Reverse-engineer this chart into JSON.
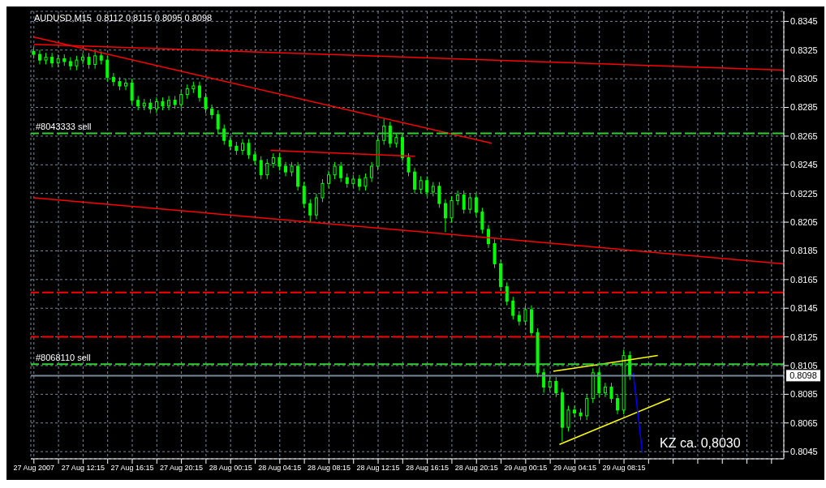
{
  "chart_data": {
    "type": "candlestick",
    "title": "AUDUSD,M15  0.8112 0.8115 0.8095 0.8098",
    "color": "#00ff00",
    "x": [
      "2007-08-27T08:15",
      "2007-08-27T08:45",
      "2007-08-27T09:15",
      "2007-08-27T09:45",
      "2007-08-27T10:15",
      "2007-08-27T10:45",
      "2007-08-27T11:15",
      "2007-08-27T11:45",
      "2007-08-27T12:15",
      "2007-08-27T12:45",
      "2007-08-27T13:15",
      "2007-08-27T13:45",
      "2007-08-27T14:15",
      "2007-08-27T14:45",
      "2007-08-27T15:15",
      "2007-08-27T15:45",
      "2007-08-27T16:15",
      "2007-08-27T16:45",
      "2007-08-27T17:15",
      "2007-08-27T17:45",
      "2007-08-27T18:15",
      "2007-08-27T18:45",
      "2007-08-27T19:15",
      "2007-08-27T19:45",
      "2007-08-27T20:15",
      "2007-08-27T20:45",
      "2007-08-27T21:15",
      "2007-08-27T21:45",
      "2007-08-27T22:15",
      "2007-08-27T22:45",
      "2007-08-27T23:15",
      "2007-08-27T23:45",
      "2007-08-28T00:15",
      "2007-08-28T00:45",
      "2007-08-28T01:15",
      "2007-08-28T01:45",
      "2007-08-28T02:15",
      "2007-08-28T02:45",
      "2007-08-28T03:15",
      "2007-08-28T03:45",
      "2007-08-28T04:15",
      "2007-08-28T04:45",
      "2007-08-28T05:15",
      "2007-08-28T05:45",
      "2007-08-28T06:15",
      "2007-08-28T06:45",
      "2007-08-28T07:15",
      "2007-08-28T07:45",
      "2007-08-28T08:15",
      "2007-08-28T08:45",
      "2007-08-28T09:15",
      "2007-08-28T09:45",
      "2007-08-28T10:15",
      "2007-08-28T10:45",
      "2007-08-28T11:15",
      "2007-08-28T11:45",
      "2007-08-28T12:15",
      "2007-08-28T12:45",
      "2007-08-28T13:15",
      "2007-08-28T13:45",
      "2007-08-28T14:15",
      "2007-08-28T14:45",
      "2007-08-28T15:15",
      "2007-08-28T15:45",
      "2007-08-28T16:15",
      "2007-08-28T16:45",
      "2007-08-28T17:15",
      "2007-08-28T17:45",
      "2007-08-28T18:15",
      "2007-08-28T18:45",
      "2007-08-28T19:15",
      "2007-08-28T19:45",
      "2007-08-28T20:15",
      "2007-08-28T20:45",
      "2007-08-28T21:15",
      "2007-08-28T21:45",
      "2007-08-28T22:15",
      "2007-08-28T22:45",
      "2007-08-28T23:15",
      "2007-08-28T23:45",
      "2007-08-29T00:15",
      "2007-08-29T00:45",
      "2007-08-29T01:15",
      "2007-08-29T01:45",
      "2007-08-29T02:15",
      "2007-08-29T02:45",
      "2007-08-29T03:15",
      "2007-08-29T03:45",
      "2007-08-29T04:15",
      "2007-08-29T04:45",
      "2007-08-29T05:15",
      "2007-08-29T05:45",
      "2007-08-29T06:15",
      "2007-08-29T06:45",
      "2007-08-29T07:15",
      "2007-08-29T07:45",
      "2007-08-29T08:15",
      "2007-08-29T08:45"
    ],
    "ohlc": [
      [
        0.8324,
        0.8327,
        0.8319,
        0.8322
      ],
      [
        0.8322,
        0.8325,
        0.8315,
        0.8318
      ],
      [
        0.8318,
        0.8323,
        0.8315,
        0.832
      ],
      [
        0.832,
        0.8323,
        0.8313,
        0.8316
      ],
      [
        0.8316,
        0.8322,
        0.8313,
        0.8319
      ],
      [
        0.8319,
        0.8322,
        0.8314,
        0.8317
      ],
      [
        0.8317,
        0.832,
        0.8311,
        0.8314
      ],
      [
        0.8314,
        0.8321,
        0.8311,
        0.8318
      ],
      [
        0.8318,
        0.8323,
        0.8315,
        0.832
      ],
      [
        0.832,
        0.8323,
        0.8312,
        0.8315
      ],
      [
        0.8315,
        0.8324,
        0.8312,
        0.8321
      ],
      [
        0.8321,
        0.8324,
        0.8315,
        0.8318
      ],
      [
        0.8318,
        0.8321,
        0.8303,
        0.8306
      ],
      [
        0.8306,
        0.8309,
        0.83,
        0.8303
      ],
      [
        0.8303,
        0.8306,
        0.8297,
        0.83
      ],
      [
        0.83,
        0.8305,
        0.8297,
        0.8302
      ],
      [
        0.8302,
        0.8305,
        0.8287,
        0.829
      ],
      [
        0.829,
        0.8293,
        0.8283,
        0.8286
      ],
      [
        0.8286,
        0.8291,
        0.8283,
        0.8288
      ],
      [
        0.8288,
        0.8291,
        0.8281,
        0.8284
      ],
      [
        0.8284,
        0.8292,
        0.8281,
        0.8289
      ],
      [
        0.8289,
        0.8292,
        0.8283,
        0.8286
      ],
      [
        0.8286,
        0.8293,
        0.8283,
        0.829
      ],
      [
        0.829,
        0.8293,
        0.8284,
        0.8287
      ],
      [
        0.8287,
        0.8297,
        0.8284,
        0.8294
      ],
      [
        0.8294,
        0.8301,
        0.8291,
        0.8298
      ],
      [
        0.8298,
        0.8303,
        0.8295,
        0.83
      ],
      [
        0.83,
        0.8303,
        0.8289,
        0.8292
      ],
      [
        0.8292,
        0.8295,
        0.8281,
        0.8284
      ],
      [
        0.8284,
        0.8287,
        0.8277,
        0.828
      ],
      [
        0.828,
        0.8283,
        0.8267,
        0.827
      ],
      [
        0.827,
        0.8273,
        0.8259,
        0.8262
      ],
      [
        0.8262,
        0.8265,
        0.8255,
        0.8258
      ],
      [
        0.8258,
        0.8261,
        0.8252,
        0.8255
      ],
      [
        0.8255,
        0.8263,
        0.8252,
        0.826
      ],
      [
        0.826,
        0.8263,
        0.8249,
        0.8252
      ],
      [
        0.8252,
        0.8255,
        0.8245,
        0.8248
      ],
      [
        0.8248,
        0.8251,
        0.8235,
        0.8238
      ],
      [
        0.8238,
        0.8249,
        0.8235,
        0.8246
      ],
      [
        0.8246,
        0.8253,
        0.8243,
        0.825
      ],
      [
        0.825,
        0.8253,
        0.8241,
        0.8244
      ],
      [
        0.8244,
        0.8247,
        0.8237,
        0.824
      ],
      [
        0.824,
        0.8247,
        0.8237,
        0.8244
      ],
      [
        0.8244,
        0.8247,
        0.8227,
        0.823
      ],
      [
        0.823,
        0.8233,
        0.8215,
        0.8218
      ],
      [
        0.8218,
        0.8221,
        0.8205,
        0.821
      ],
      [
        0.821,
        0.8225,
        0.8207,
        0.8222
      ],
      [
        0.8222,
        0.8235,
        0.8219,
        0.8232
      ],
      [
        0.8232,
        0.8241,
        0.8229,
        0.8238
      ],
      [
        0.8238,
        0.8247,
        0.8235,
        0.8244
      ],
      [
        0.8244,
        0.8247,
        0.8233,
        0.8236
      ],
      [
        0.8236,
        0.8239,
        0.8229,
        0.8232
      ],
      [
        0.8232,
        0.8238,
        0.8229,
        0.8235
      ],
      [
        0.8235,
        0.8238,
        0.8227,
        0.823
      ],
      [
        0.823,
        0.8239,
        0.8227,
        0.8236
      ],
      [
        0.8236,
        0.8247,
        0.8233,
        0.8244
      ],
      [
        0.8244,
        0.8265,
        0.8241,
        0.8262
      ],
      [
        0.8262,
        0.8277,
        0.8259,
        0.8272
      ],
      [
        0.8272,
        0.8275,
        0.8257,
        0.826
      ],
      [
        0.826,
        0.8267,
        0.8257,
        0.8264
      ],
      [
        0.8264,
        0.8267,
        0.8247,
        0.825
      ],
      [
        0.825,
        0.8253,
        0.8237,
        0.824
      ],
      [
        0.824,
        0.8243,
        0.8225,
        0.8228
      ],
      [
        0.8228,
        0.8237,
        0.8225,
        0.8234
      ],
      [
        0.8234,
        0.8237,
        0.8223,
        0.8226
      ],
      [
        0.8226,
        0.8233,
        0.8223,
        0.823
      ],
      [
        0.823,
        0.8233,
        0.8215,
        0.8218
      ],
      [
        0.8218,
        0.8221,
        0.8198,
        0.8208
      ],
      [
        0.8208,
        0.8223,
        0.8205,
        0.822
      ],
      [
        0.822,
        0.8227,
        0.8217,
        0.8224
      ],
      [
        0.8224,
        0.8227,
        0.8211,
        0.8214
      ],
      [
        0.8214,
        0.8225,
        0.8211,
        0.8222
      ],
      [
        0.8222,
        0.8225,
        0.8209,
        0.8212
      ],
      [
        0.8212,
        0.8215,
        0.8197,
        0.82
      ],
      [
        0.82,
        0.8203,
        0.8187,
        0.819
      ],
      [
        0.819,
        0.8193,
        0.8173,
        0.8176
      ],
      [
        0.8176,
        0.8179,
        0.8157,
        0.816
      ],
      [
        0.816,
        0.8163,
        0.8147,
        0.815
      ],
      [
        0.815,
        0.8153,
        0.8137,
        0.814
      ],
      [
        0.814,
        0.8143,
        0.8133,
        0.8136
      ],
      [
        0.8136,
        0.8147,
        0.8133,
        0.8144
      ],
      [
        0.8144,
        0.8147,
        0.8125,
        0.8128
      ],
      [
        0.8128,
        0.8131,
        0.8097,
        0.81
      ],
      [
        0.81,
        0.8103,
        0.8086,
        0.809
      ],
      [
        0.809,
        0.8097,
        0.8087,
        0.8094
      ],
      [
        0.8094,
        0.8097,
        0.8083,
        0.8086
      ],
      [
        0.8086,
        0.8089,
        0.8052,
        0.8062
      ],
      [
        0.8062,
        0.8077,
        0.8059,
        0.8074
      ],
      [
        0.8074,
        0.8077,
        0.8069,
        0.8072
      ],
      [
        0.8072,
        0.8075,
        0.8067,
        0.807
      ],
      [
        0.807,
        0.8085,
        0.8067,
        0.8082
      ],
      [
        0.8082,
        0.8103,
        0.8079,
        0.81
      ],
      [
        0.81,
        0.8103,
        0.8083,
        0.8086
      ],
      [
        0.8086,
        0.8093,
        0.8083,
        0.809
      ],
      [
        0.809,
        0.8093,
        0.8079,
        0.8082
      ],
      [
        0.8082,
        0.8085,
        0.8071,
        0.8074
      ],
      [
        0.8074,
        0.8116,
        0.8071,
        0.8112
      ],
      [
        0.8112,
        0.8115,
        0.8095,
        0.8098
      ]
    ],
    "series": [
      {
        "type": "line",
        "color": "#ff0000",
        "x": [
          "2007-08-27T08:15",
          "2007-08-29T21:15"
        ],
        "values": [
          0.8329,
          0.8311
        ]
      },
      {
        "type": "line",
        "color": "#ff0000",
        "x": [
          "2007-08-27T08:15",
          "2007-08-28T21:30"
        ],
        "values": [
          0.8334,
          0.826
        ]
      },
      {
        "type": "line",
        "color": "#ff0000",
        "x": [
          "2007-08-27T08:15",
          "2007-08-29T21:15"
        ],
        "values": [
          0.8222,
          0.8176
        ]
      },
      {
        "type": "line",
        "color": "#ff0000",
        "x": [
          "2007-08-28T03:30",
          "2007-08-28T15:15"
        ],
        "values": [
          0.8255,
          0.8251
        ]
      },
      {
        "type": "line",
        "color": "#ffff00",
        "x": [
          "2007-08-29T02:30",
          "2007-08-29T11:00"
        ],
        "values": [
          0.8101,
          0.8112
        ]
      },
      {
        "type": "line",
        "color": "#ffff00",
        "x": [
          "2007-08-29T03:00",
          "2007-08-29T12:00"
        ],
        "values": [
          0.805,
          0.8082
        ]
      },
      {
        "type": "line",
        "color": "#0000ff",
        "x": [
          "2007-08-29T09:00",
          "2007-08-29T09:45"
        ],
        "values": [
          0.81,
          0.8044
        ]
      }
    ],
    "xlim": [
      "2007-08-27T08:00",
      "2007-08-29T21:15"
    ],
    "xticks": [
      {
        "value": "2007-08-27T08:15",
        "label": "27 Aug 2007"
      },
      {
        "value": "2007-08-27T10:15",
        "label": null
      },
      {
        "value": "2007-08-27T12:15",
        "label": "27 Aug 12:15"
      },
      {
        "value": "2007-08-27T14:15",
        "label": null
      },
      {
        "value": "2007-08-27T16:15",
        "label": "27 Aug 16:15"
      },
      {
        "value": "2007-08-27T18:15",
        "label": null
      },
      {
        "value": "2007-08-27T20:15",
        "label": "27 Aug 20:15"
      },
      {
        "value": "2007-08-27T22:15",
        "label": null
      },
      {
        "value": "2007-08-28T00:15",
        "label": "28 Aug 00:15"
      },
      {
        "value": "2007-08-28T02:15",
        "label": null
      },
      {
        "value": "2007-08-28T04:15",
        "label": "28 Aug 04:15"
      },
      {
        "value": "2007-08-28T06:15",
        "label": null
      },
      {
        "value": "2007-08-28T08:15",
        "label": "28 Aug 08:15"
      },
      {
        "value": "2007-08-28T10:15",
        "label": null
      },
      {
        "value": "2007-08-28T12:15",
        "label": "28 Aug 12:15"
      },
      {
        "value": "2007-08-28T14:15",
        "label": null
      },
      {
        "value": "2007-08-28T16:15",
        "label": "28 Aug 16:15"
      },
      {
        "value": "2007-08-28T18:15",
        "label": null
      },
      {
        "value": "2007-08-28T20:15",
        "label": "28 Aug 20:15"
      },
      {
        "value": "2007-08-28T22:15",
        "label": null
      },
      {
        "value": "2007-08-29T00:15",
        "label": "29 Aug 00:15"
      },
      {
        "value": "2007-08-29T02:15",
        "label": null
      },
      {
        "value": "2007-08-29T04:15",
        "label": "29 Aug 04:15"
      },
      {
        "value": "2007-08-29T06:15",
        "label": null
      },
      {
        "value": "2007-08-29T08:15",
        "label": "29 Aug 08:15"
      },
      {
        "value": "2007-08-29T10:15",
        "label": null
      },
      {
        "value": "2007-08-29T12:15",
        "label": null
      },
      {
        "value": "2007-08-29T14:15",
        "label": null
      },
      {
        "value": "2007-08-29T16:15",
        "label": null
      },
      {
        "value": "2007-08-29T18:15",
        "label": null
      },
      {
        "value": "2007-08-29T20:15",
        "label": null
      }
    ],
    "ylim": [
      0.804,
      0.8352
    ],
    "yticks": [
      0.8045,
      0.8065,
      0.8085,
      0.8105,
      0.8125,
      0.8145,
      0.8165,
      0.8185,
      0.8205,
      0.8225,
      0.8245,
      0.8265,
      0.8285,
      0.8305,
      0.8325,
      0.8345
    ],
    "grid": true,
    "ref_lines": [
      {
        "axis": "y",
        "value": 0.8267,
        "label": "#8043333 sell",
        "color": "#32cd32",
        "line_style": "dashed"
      },
      {
        "axis": "y",
        "value": 0.8106,
        "label": "#8068110 sell",
        "color": "#32cd32",
        "line_style": "dashed"
      },
      {
        "axis": "y",
        "value": 0.8156,
        "color": "#ff0000",
        "line_style": "dashed"
      },
      {
        "axis": "y",
        "value": 0.8125,
        "color": "#ff0000",
        "line_style": "dashed"
      },
      {
        "axis": "y",
        "value": 0.8098,
        "label": "0.8098",
        "color": "#778899",
        "line_style": "solid"
      }
    ],
    "annotations": [
      "KZ ca. 0,8030"
    ]
  }
}
